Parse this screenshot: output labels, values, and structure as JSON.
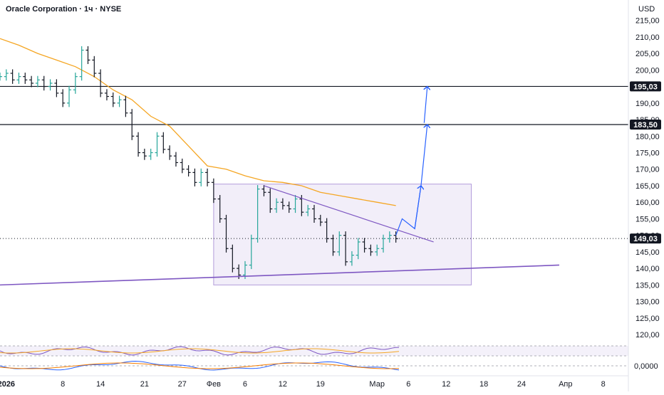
{
  "header": {
    "title": "Oracle Corporation · 1ч · NYSE",
    "currency": "USD"
  },
  "colors": {
    "up": "#26a69a",
    "down": "#131722",
    "ma": "#f5a623",
    "trendline": "#7e57c2",
    "arrow": "#2962ff",
    "box_fill": "#ede7f6",
    "box_stroke": "#b39ddb",
    "level": "#131722",
    "tag_bg": "#131722"
  },
  "chart_data": {
    "type": "line",
    "title": "Oracle Corporation · 1ч · NYSE",
    "xlabel": "",
    "ylabel": "USD",
    "ylim": [
      117,
      216
    ],
    "yscale": "linear",
    "grid": false,
    "y_ticks": [
      "215,00",
      "210,00",
      "205,00",
      "200,00",
      "195,00",
      "190,00",
      "185,00",
      "180,00",
      "175,00",
      "170,00",
      "165,00",
      "160,00",
      "155,00",
      "150,00",
      "145,00",
      "140,00",
      "135,00",
      "130,00",
      "125,00",
      "120,00"
    ],
    "x_ticks": [
      {
        "label": "2026",
        "pos": 0
      },
      {
        "label": "8",
        "pos": 9
      },
      {
        "label": "14",
        "pos": 15
      },
      {
        "label": "21",
        "pos": 22
      },
      {
        "label": "27",
        "pos": 28
      },
      {
        "label": "Фев",
        "pos": 33
      },
      {
        "label": "6",
        "pos": 38
      },
      {
        "label": "12",
        "pos": 44
      },
      {
        "label": "19",
        "pos": 50
      },
      {
        "label": "Мар",
        "pos": 59
      },
      {
        "label": "6",
        "pos": 64
      },
      {
        "label": "12",
        "pos": 70
      },
      {
        "label": "18",
        "pos": 76
      },
      {
        "label": "24",
        "pos": 82
      },
      {
        "label": "Апр",
        "pos": 89
      },
      {
        "label": "8",
        "pos": 95
      }
    ],
    "x_range": [
      -1,
      99
    ],
    "series": [
      {
        "kind": "price",
        "x": [
          -1,
          0,
          1,
          2,
          3,
          4,
          5,
          6,
          7,
          8,
          9,
          10,
          11,
          12,
          13,
          14,
          15,
          16,
          17,
          18,
          19,
          20,
          21,
          22,
          23,
          24,
          25,
          26,
          27,
          28,
          29,
          30,
          31,
          32,
          33,
          34,
          35,
          36,
          37,
          38,
          39,
          40,
          41,
          42,
          43,
          44,
          45,
          46,
          47,
          48,
          49,
          50,
          51,
          52,
          53,
          54,
          55,
          56,
          57,
          58,
          59,
          60,
          61,
          62
        ],
        "y": [
          198,
          199,
          197,
          198,
          197,
          196,
          197,
          195,
          196,
          193,
          190,
          194,
          198,
          206,
          203,
          199,
          193,
          192,
          190,
          191,
          187,
          180,
          175,
          174,
          175,
          180,
          176,
          174,
          172,
          170,
          169,
          166,
          169,
          166,
          161,
          155,
          146,
          140,
          138,
          141,
          149,
          164,
          163,
          158,
          160,
          159,
          158,
          161,
          157,
          158,
          155,
          154,
          149,
          145,
          150,
          142,
          144,
          148,
          146,
          145,
          146,
          149,
          150,
          149
        ]
      },
      {
        "kind": "ma",
        "x": [
          -1,
          2,
          5,
          8,
          11,
          14,
          17,
          20,
          23,
          26,
          29,
          32,
          35,
          38,
          41,
          44,
          47,
          50,
          53,
          56,
          59,
          62
        ],
        "y": [
          209.5,
          207.5,
          205,
          203,
          201,
          198,
          194,
          191,
          186,
          183,
          177,
          171,
          170,
          168,
          166.5,
          166,
          165,
          163,
          162,
          161,
          160,
          159
        ]
      }
    ],
    "levels": [
      {
        "label": "195,03",
        "value": 195.03
      },
      {
        "label": "183,50",
        "value": 183.5
      },
      {
        "label": "149,03",
        "value": 149.03,
        "style": "dotted"
      }
    ],
    "trendlines": [
      {
        "from": {
          "x": -1,
          "y": 135
        },
        "to": {
          "x": 88,
          "y": 141
        }
      },
      {
        "from": {
          "x": 41,
          "y": 165
        },
        "to": {
          "x": 68,
          "y": 148
        }
      }
    ],
    "zone": {
      "x0": 33,
      "x1": 74,
      "y0": 135,
      "y1": 165.5
    },
    "projection": {
      "path": [
        {
          "x": 62,
          "y": 150
        },
        {
          "x": 63,
          "y": 155
        },
        {
          "x": 65,
          "y": 152
        },
        {
          "x": 66,
          "y": 165
        }
      ],
      "arrows": [
        {
          "from": {
            "x": 66,
            "y": 165
          },
          "to": {
            "x": 67,
            "y": 183.5
          }
        },
        {
          "from": {
            "x": 66.5,
            "y": 184
          },
          "to": {
            "x": 67,
            "y": 195
          }
        }
      ]
    },
    "oscillator_right_label": "0,0000"
  }
}
